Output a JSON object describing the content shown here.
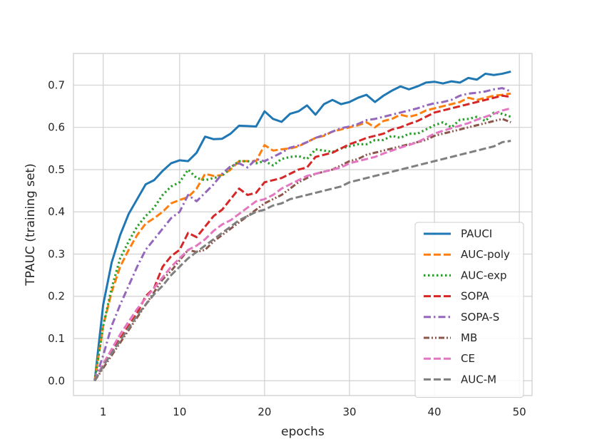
{
  "chart_data": {
    "type": "line",
    "title": "",
    "xlabel": "epochs",
    "ylabel": "TPAUC (training set)",
    "xlim": [
      -2.5,
      51.5
    ],
    "ylim": [
      -0.035,
      0.775
    ],
    "xticks": [
      1,
      10,
      20,
      30,
      40,
      50
    ],
    "yticks": [
      0.0,
      0.1,
      0.2,
      0.3,
      0.4,
      0.5,
      0.6,
      0.7
    ],
    "grid": true,
    "legend_position": "lower-right",
    "x": [
      0,
      1,
      2,
      3,
      4,
      5,
      6,
      7,
      8,
      9,
      10,
      11,
      12,
      13,
      14,
      15,
      16,
      17,
      18,
      19,
      20,
      21,
      22,
      23,
      24,
      25,
      26,
      27,
      28,
      29,
      30,
      31,
      32,
      33,
      34,
      35,
      36,
      37,
      38,
      39,
      40,
      41,
      42,
      43,
      44,
      45,
      46,
      47,
      48,
      49
    ],
    "series": [
      {
        "name": "PAUCI",
        "color": "#1f77b4",
        "dash": "solid",
        "values": [
          0.0,
          0.18,
          0.28,
          0.345,
          0.395,
          0.43,
          0.465,
          0.475,
          0.497,
          0.515,
          0.522,
          0.52,
          0.54,
          0.578,
          0.572,
          0.573,
          0.585,
          0.604,
          0.603,
          0.602,
          0.638,
          0.62,
          0.613,
          0.632,
          0.638,
          0.652,
          0.63,
          0.655,
          0.665,
          0.655,
          0.66,
          0.67,
          0.677,
          0.66,
          0.675,
          0.687,
          0.697,
          0.69,
          0.697,
          0.706,
          0.708,
          0.704,
          0.709,
          0.706,
          0.717,
          0.713,
          0.727,
          0.724,
          0.727,
          0.732
        ]
      },
      {
        "name": "AUC-poly",
        "color": "#ff7f0e",
        "dash": "dashed",
        "values": [
          0.0,
          0.13,
          0.21,
          0.27,
          0.31,
          0.345,
          0.372,
          0.385,
          0.4,
          0.42,
          0.428,
          0.435,
          0.455,
          0.49,
          0.485,
          0.487,
          0.5,
          0.52,
          0.52,
          0.52,
          0.558,
          0.545,
          0.548,
          0.55,
          0.555,
          0.565,
          0.575,
          0.58,
          0.59,
          0.595,
          0.6,
          0.605,
          0.612,
          0.6,
          0.615,
          0.62,
          0.63,
          0.625,
          0.63,
          0.64,
          0.645,
          0.65,
          0.655,
          0.66,
          0.67,
          0.665,
          0.67,
          0.675,
          0.677,
          0.68
        ]
      },
      {
        "name": "AUC-exp",
        "color": "#2ca02c",
        "dash": "dotted",
        "values": [
          0.0,
          0.13,
          0.22,
          0.29,
          0.33,
          0.365,
          0.39,
          0.41,
          0.44,
          0.46,
          0.47,
          0.5,
          0.48,
          0.475,
          0.48,
          0.485,
          0.505,
          0.52,
          0.52,
          0.515,
          0.52,
          0.51,
          0.525,
          0.53,
          0.532,
          0.525,
          0.548,
          0.545,
          0.542,
          0.55,
          0.555,
          0.56,
          0.56,
          0.57,
          0.57,
          0.58,
          0.575,
          0.585,
          0.585,
          0.595,
          0.605,
          0.612,
          0.6,
          0.618,
          0.62,
          0.625,
          0.615,
          0.635,
          0.632,
          0.625
        ]
      },
      {
        "name": "SOPA",
        "color": "#d62728",
        "dash": "dashed",
        "values": [
          0.0,
          0.035,
          0.07,
          0.1,
          0.13,
          0.16,
          0.2,
          0.22,
          0.27,
          0.295,
          0.31,
          0.35,
          0.34,
          0.365,
          0.39,
          0.405,
          0.43,
          0.455,
          0.44,
          0.445,
          0.47,
          0.475,
          0.48,
          0.49,
          0.5,
          0.505,
          0.53,
          0.535,
          0.54,
          0.55,
          0.56,
          0.567,
          0.575,
          0.58,
          0.585,
          0.595,
          0.6,
          0.608,
          0.615,
          0.625,
          0.635,
          0.64,
          0.645,
          0.65,
          0.655,
          0.66,
          0.665,
          0.67,
          0.675,
          0.672
        ]
      },
      {
        "name": "SOPA-S",
        "color": "#9467bd",
        "dash": "dashdot",
        "values": [
          0.0,
          0.06,
          0.13,
          0.18,
          0.225,
          0.27,
          0.31,
          0.335,
          0.36,
          0.385,
          0.4,
          0.44,
          0.425,
          0.445,
          0.465,
          0.49,
          0.508,
          0.515,
          0.505,
          0.525,
          0.52,
          0.53,
          0.54,
          0.552,
          0.557,
          0.565,
          0.575,
          0.582,
          0.59,
          0.598,
          0.602,
          0.608,
          0.617,
          0.62,
          0.625,
          0.63,
          0.635,
          0.64,
          0.645,
          0.652,
          0.657,
          0.66,
          0.665,
          0.675,
          0.68,
          0.682,
          0.685,
          0.69,
          0.693,
          0.685
        ]
      },
      {
        "name": "MB",
        "color": "#8c564b",
        "dash": "dashdotdot",
        "values": [
          0.0,
          0.03,
          0.06,
          0.09,
          0.12,
          0.15,
          0.18,
          0.21,
          0.24,
          0.26,
          0.285,
          0.31,
          0.305,
          0.31,
          0.33,
          0.345,
          0.36,
          0.375,
          0.39,
          0.405,
          0.42,
          0.43,
          0.44,
          0.455,
          0.47,
          0.48,
          0.49,
          0.495,
          0.5,
          0.51,
          0.52,
          0.525,
          0.535,
          0.54,
          0.545,
          0.55,
          0.555,
          0.56,
          0.565,
          0.57,
          0.58,
          0.585,
          0.59,
          0.595,
          0.6,
          0.605,
          0.61,
          0.615,
          0.62,
          0.612
        ]
      },
      {
        "name": "CE",
        "color": "#e377c2",
        "dash": "dashed",
        "values": [
          0.0,
          0.04,
          0.075,
          0.11,
          0.14,
          0.17,
          0.195,
          0.22,
          0.245,
          0.27,
          0.29,
          0.31,
          0.32,
          0.335,
          0.355,
          0.37,
          0.38,
          0.395,
          0.41,
          0.425,
          0.43,
          0.44,
          0.455,
          0.465,
          0.475,
          0.485,
          0.49,
          0.495,
          0.5,
          0.505,
          0.515,
          0.52,
          0.525,
          0.53,
          0.538,
          0.545,
          0.552,
          0.558,
          0.565,
          0.575,
          0.585,
          0.592,
          0.598,
          0.604,
          0.61,
          0.618,
          0.625,
          0.632,
          0.64,
          0.645
        ]
      },
      {
        "name": "AUC-M",
        "color": "#7f7f7f",
        "dash": "dashed",
        "values": [
          0.0,
          0.035,
          0.065,
          0.095,
          0.125,
          0.155,
          0.18,
          0.205,
          0.225,
          0.25,
          0.27,
          0.29,
          0.305,
          0.32,
          0.335,
          0.35,
          0.365,
          0.38,
          0.39,
          0.4,
          0.405,
          0.415,
          0.42,
          0.43,
          0.435,
          0.44,
          0.445,
          0.45,
          0.455,
          0.46,
          0.47,
          0.475,
          0.48,
          0.485,
          0.49,
          0.495,
          0.5,
          0.505,
          0.51,
          0.515,
          0.52,
          0.525,
          0.53,
          0.535,
          0.54,
          0.545,
          0.55,
          0.555,
          0.565,
          0.568
        ]
      }
    ]
  }
}
